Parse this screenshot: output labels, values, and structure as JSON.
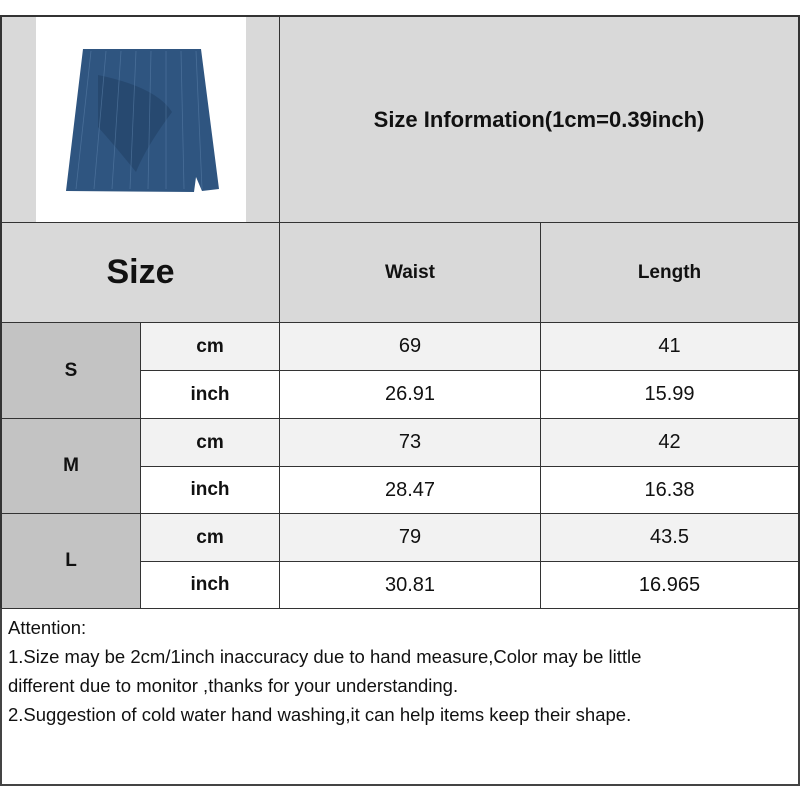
{
  "header": {
    "product_image": "blue pinstripe ruched mini skirt",
    "title": "Size Information(1cm=0.39inch)"
  },
  "table": {
    "size_label": "Size",
    "columns": [
      "Waist",
      "Length"
    ],
    "rows": [
      {
        "size": "S",
        "cm": {
          "unit": "cm",
          "waist": "69",
          "length": "41"
        },
        "inch": {
          "unit": "inch",
          "waist": "26.91",
          "length": "15.99"
        }
      },
      {
        "size": "M",
        "cm": {
          "unit": "cm",
          "waist": "73",
          "length": "42"
        },
        "inch": {
          "unit": "inch",
          "waist": "28.47",
          "length": "16.38"
        }
      },
      {
        "size": "L",
        "cm": {
          "unit": "cm",
          "waist": "79",
          "length": "43.5"
        },
        "inch": {
          "unit": "inch",
          "waist": "30.81",
          "length": "16.965"
        }
      }
    ]
  },
  "notes": {
    "heading": "Attention:",
    "line1a": "1.Size may be 2cm/1inch inaccuracy due to hand measure,Color may be little",
    "line1b": "different due to monitor ,thanks for your understanding.",
    "line2": "2.Suggestion of cold water hand washing,it can help items keep their shape."
  },
  "colors": {
    "header_bg": "#d9d9d9",
    "size_col_bg": "#c3c3c3",
    "cm_row_bg": "#f2f2f2",
    "skirt": "#2f5580"
  }
}
